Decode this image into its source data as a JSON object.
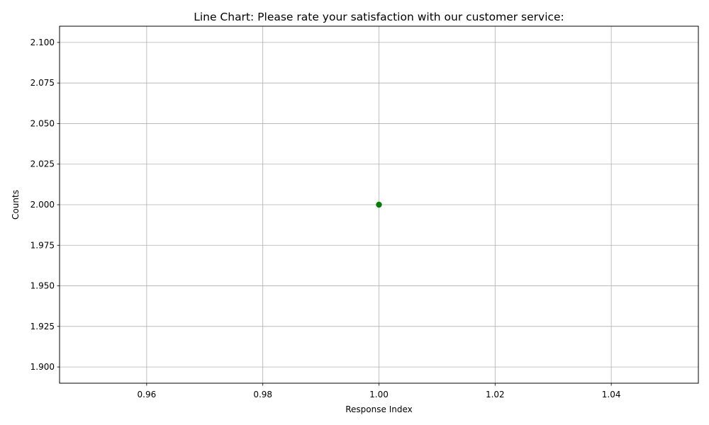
{
  "chart_data": {
    "type": "line",
    "title": "Line Chart: Please rate your satisfaction with our customer service:",
    "xlabel": "Response Index",
    "ylabel": "Counts",
    "xlim": [
      0.945,
      1.055
    ],
    "ylim": [
      1.89,
      2.11
    ],
    "xticks": [
      0.96,
      0.98,
      1.0,
      1.02,
      1.04
    ],
    "xtick_labels": [
      "0.96",
      "0.98",
      "1.00",
      "1.02",
      "1.04"
    ],
    "yticks": [
      1.9,
      1.925,
      1.95,
      1.975,
      2.0,
      2.025,
      2.05,
      2.075,
      2.1
    ],
    "ytick_labels": [
      "1.900",
      "1.925",
      "1.950",
      "1.975",
      "2.000",
      "2.025",
      "2.050",
      "2.075",
      "2.100"
    ],
    "grid": true,
    "series": [
      {
        "name": "Counts",
        "color": "#008000",
        "marker": "circle",
        "x": [
          1.0
        ],
        "y": [
          2.0
        ]
      }
    ]
  }
}
